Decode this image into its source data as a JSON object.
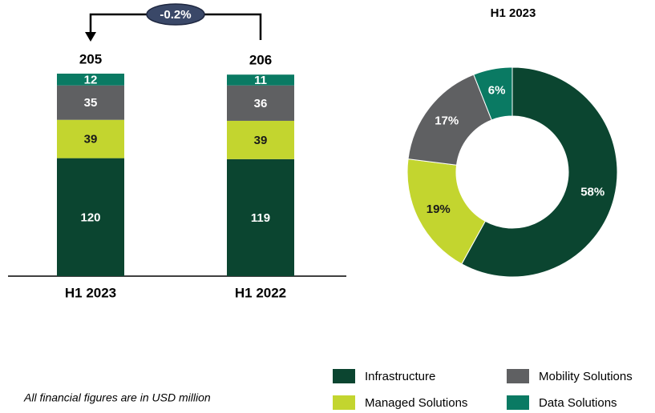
{
  "chart_data": [
    {
      "type": "stacked_bar",
      "categories": [
        "H1 2023",
        "H1 2022"
      ],
      "series": [
        {
          "name": "Infrastructure",
          "color": "#0b4530",
          "values": [
            120,
            119
          ]
        },
        {
          "name": "Managed Solutions",
          "color": "#c3d52f",
          "values": [
            39,
            39
          ]
        },
        {
          "name": "Mobility Solutions",
          "color": "#5f6062",
          "values": [
            35,
            36
          ]
        },
        {
          "name": "Data Solutions",
          "color": "#0a7a63",
          "values": [
            12,
            11
          ]
        }
      ],
      "totals": [
        205,
        206
      ],
      "annotation": "-0.2%"
    },
    {
      "type": "donut",
      "title": "H1 2023",
      "categories": [
        "Infrastructure",
        "Managed Solutions",
        "Mobility Solutions",
        "Data Solutions"
      ],
      "values": [
        58,
        19,
        17,
        6
      ],
      "value_labels": [
        "58%",
        "19%",
        "17%",
        "6%"
      ],
      "colors": [
        "#0b4530",
        "#c3d52f",
        "#5f6062",
        "#0a7a63"
      ]
    }
  ],
  "footnote": "All financial figures are in USD million"
}
